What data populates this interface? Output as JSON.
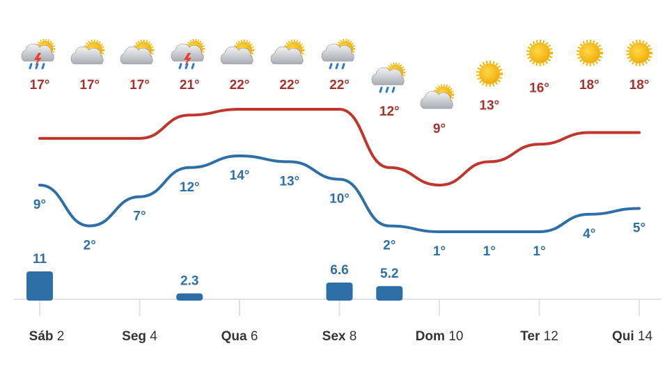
{
  "chart_data": {
    "type": "line",
    "categories": [
      {
        "day": "Sáb",
        "date": "2"
      },
      null,
      {
        "day": "Seg",
        "date": "4"
      },
      null,
      {
        "day": "Qua",
        "date": "6"
      },
      null,
      {
        "day": "Sex",
        "date": "8"
      },
      null,
      {
        "day": "Dom",
        "date": "10"
      },
      null,
      {
        "day": "Ter",
        "date": "12"
      },
      null,
      {
        "day": "Qui",
        "date": "14"
      }
    ],
    "series": [
      {
        "color": "#c0362c",
        "label_color": "#a8322b",
        "values": [
          17,
          17,
          17,
          21,
          22,
          22,
          22,
          12,
          9,
          13,
          16,
          18,
          18
        ],
        "value_labels": [
          "17°",
          "17°",
          "17°",
          "21°",
          "22°",
          "22°",
          "22°",
          "12°",
          "9°",
          "13°",
          "16°",
          "18°",
          "18°"
        ]
      },
      {
        "color": "#2f6fa7",
        "label_color": "#2f6fa7",
        "values": [
          9,
          2,
          7,
          12,
          14,
          13,
          10,
          2,
          1,
          1,
          1,
          4,
          5
        ],
        "value_labels": [
          "9°",
          "2°",
          "7°",
          "12°",
          "14°",
          "13°",
          "10°",
          "2°",
          "1°",
          "1°",
          "1°",
          "4°",
          "5°"
        ]
      }
    ],
    "precipitation": {
      "type": "bar",
      "color": "#2f6fa7",
      "values": [
        11,
        null,
        null,
        2.3,
        null,
        null,
        6.6,
        5.2,
        null,
        null,
        null,
        null,
        null
      ]
    }
  }
}
